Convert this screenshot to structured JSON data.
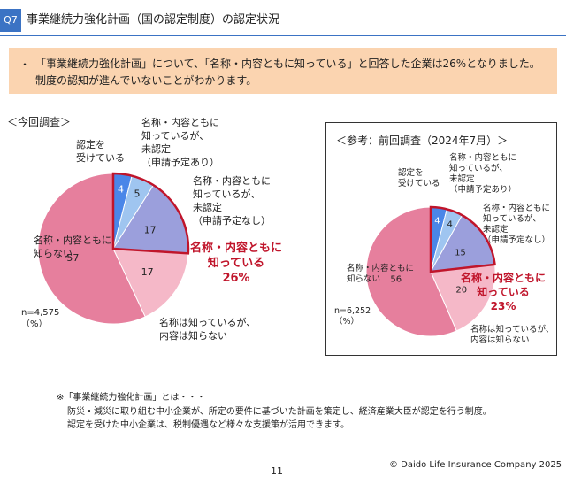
{
  "header": {
    "badge": "Q7",
    "title": "事業継続力強化計画（国の認定制度）の認定状況"
  },
  "summary": {
    "bullet": "・",
    "line1": "「事業継続力強化計画」について、「名称・内容ともに知っている」と回答した企業は26%となりました。",
    "line2": "制度の認知が進んでいないことがわかります。"
  },
  "colors": {
    "accent": "#3b73c4",
    "summary_bg": "#fbd4b0",
    "highlight": "#c0152b",
    "seg_certified": "#4a86e8",
    "seg_planned": "#9fc5f0",
    "seg_not_planned": "#9b9fdc",
    "seg_name_only": "#f5b8c8",
    "seg_unknown": "#e67f9d"
  },
  "chart_data": [
    {
      "type": "pie",
      "title": "＜今回調査＞",
      "n_label": "n=4,575",
      "unit_label": "（%）",
      "labels": {
        "certified": [
          "認定を",
          "受けている"
        ],
        "planned": [
          "名称・内容ともに",
          "知っているが、",
          "未認定",
          "（申請予定あり）"
        ],
        "not_planned": [
          "名称・内容ともに",
          "知っているが、",
          "未認定",
          "（申請予定なし）"
        ],
        "name_only": [
          "名称は知っているが、",
          "内容は知らない"
        ],
        "unknown": [
          "名称・内容ともに",
          "知らない"
        ]
      },
      "slices": [
        {
          "key": "certified",
          "value": 4
        },
        {
          "key": "planned",
          "value": 5
        },
        {
          "key": "not_planned",
          "value": 17
        },
        {
          "key": "name_only",
          "value": 17
        },
        {
          "key": "unknown",
          "value": 57
        }
      ],
      "highlight": {
        "lines": [
          "名称・内容ともに",
          "知っている",
          "26%"
        ],
        "value": 26
      }
    },
    {
      "type": "pie",
      "title": "＜参考：前回調査（2024年7月）＞",
      "n_label": "n=6,252",
      "unit_label": "（%）",
      "labels": {
        "certified": [
          "認定を",
          "受けている"
        ],
        "planned": [
          "名称・内容ともに",
          "知っているが、",
          "未認定",
          "（申請予定あり）"
        ],
        "not_planned": [
          "名称・内容ともに",
          "知っているが、",
          "未認定",
          "（申請予定なし）"
        ],
        "name_only": [
          "名称は知っているが、",
          "内容は知らない"
        ],
        "unknown": [
          "名称・内容ともに",
          "知らない"
        ]
      },
      "slices": [
        {
          "key": "certified",
          "value": 4
        },
        {
          "key": "planned",
          "value": 4
        },
        {
          "key": "not_planned",
          "value": 15
        },
        {
          "key": "name_only",
          "value": 20
        },
        {
          "key": "unknown",
          "value": 56
        }
      ],
      "highlight": {
        "lines": [
          "名称・内容ともに",
          "知っている",
          "23%"
        ],
        "value": 23
      }
    }
  ],
  "footnote": {
    "line1": "※「事業継続力強化計画」とは・・・",
    "line2": "防災・減災に取り組む中小企業が、所定の要件に基づいた計画を策定し、経済産業大臣が認定を行う制度。",
    "line3": "認定を受けた中小企業は、税制優遇など様々な支援策が活用できます。"
  },
  "page_number": "11",
  "copyright": "© Daido Life Insurance Company 2025"
}
